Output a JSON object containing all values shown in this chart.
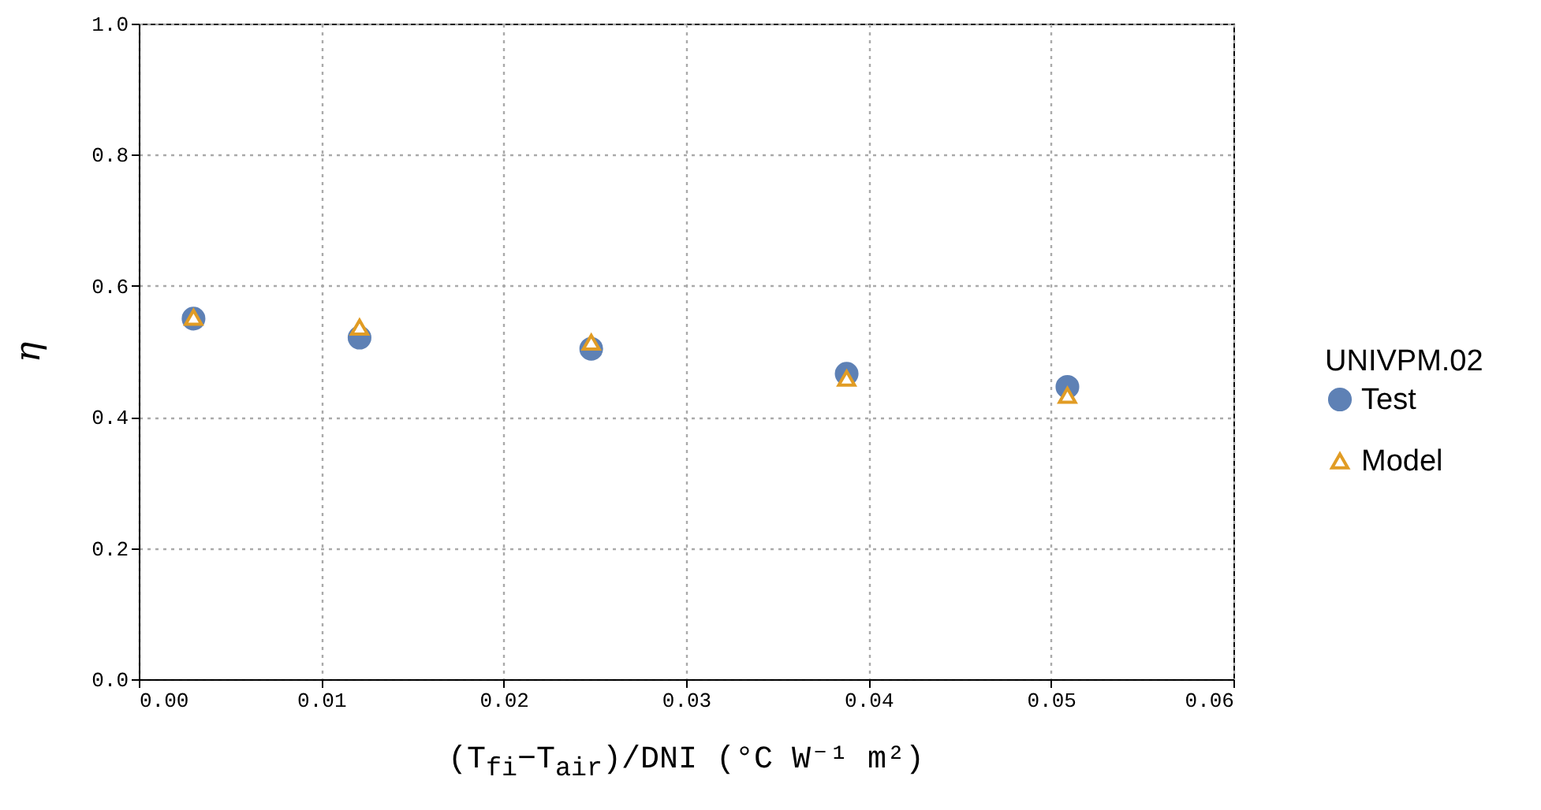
{
  "chart_data": {
    "type": "scatter",
    "xlabel": "(T$_{fi}$−T$_{air}$)/DNI (°C W⁻¹ m²)",
    "ylabel": "η",
    "legend_title": "UNIVPM.02",
    "legend": "right",
    "grid": true,
    "xlim": [
      0,
      0.06
    ],
    "ylim": [
      0,
      1
    ],
    "xticks": [
      {
        "value": 0,
        "label": "0.00"
      },
      {
        "value": 0.01,
        "label": "0.01"
      },
      {
        "value": 0.02,
        "label": "0.02"
      },
      {
        "value": 0.03,
        "label": "0.03"
      },
      {
        "value": 0.04,
        "label": "0.04"
      },
      {
        "value": 0.05,
        "label": "0.05"
      },
      {
        "value": 0.06,
        "label": "0.06"
      }
    ],
    "yticks": [
      {
        "value": 0,
        "label": "0.0"
      },
      {
        "value": 0.2,
        "label": "0.2"
      },
      {
        "value": 0.4,
        "label": "0.4"
      },
      {
        "value": 0.6,
        "label": "0.6"
      },
      {
        "value": 0.8,
        "label": "0.8"
      },
      {
        "value": 1,
        "label": "1.0"
      }
    ],
    "series": [
      {
        "name": "Test",
        "color": "#5e81b5",
        "marker": "circle",
        "x": [
          0.003,
          0.0121,
          0.0248,
          0.0388,
          0.0509
        ],
        "values": [
          0.55,
          0.521,
          0.504,
          0.466,
          0.446
        ]
      },
      {
        "name": "Model",
        "color": "#e19c24",
        "marker": "triangle",
        "x": [
          0.003,
          0.0121,
          0.0248,
          0.0388,
          0.0509
        ],
        "values": [
          0.552,
          0.537,
          0.514,
          0.459,
          0.433
        ]
      }
    ]
  }
}
